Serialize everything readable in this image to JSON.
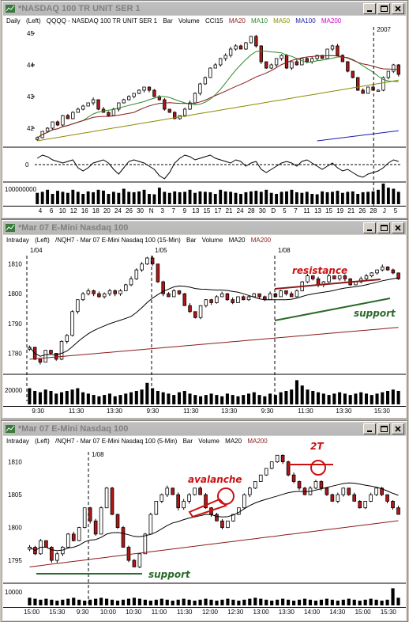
{
  "colors": {
    "up": "#ffffff",
    "down": "#b01818",
    "ma20": "#8b1a1a",
    "ma10": "#2a8a2a",
    "ma50": "#8b8b00",
    "ma100": "#1a1ab0",
    "ma200": "#8b1a1a",
    "resistance": "#8b1a1a",
    "support": "#2a6a2a",
    "annotation": "#cc1010"
  },
  "windows": [
    {
      "title": "*NASDAQ 100 TR UNIT SER 1",
      "icon": "chart-icon",
      "infobar": [
        "Daily",
        "(Left)",
        "QQQQ - NASDAQ 100 TR UNIT SER 1",
        "Bar",
        "Volume",
        "CCI15",
        "MA20",
        "MA10",
        "MA50",
        "MA100",
        "MA200"
      ],
      "year_label": "2007",
      "yticks": [
        "45",
        "44",
        "43",
        "42"
      ],
      "cci_tick": "0",
      "volume_tick": "100000000",
      "xlabels": [
        "4",
        "6",
        "10",
        "12",
        "16",
        "18",
        "20",
        "24",
        "26",
        "30",
        "N",
        "3",
        "7",
        "9",
        "13",
        "15",
        "17",
        "21",
        "24",
        "28",
        "30",
        "D",
        "5",
        "7",
        "11",
        "13",
        "15",
        "19",
        "21",
        "26",
        "28",
        "J",
        "5"
      ]
    },
    {
      "title": "*Mar 07  E-Mini Nasdaq 100",
      "icon": "chart-icon",
      "infobar": [
        "Intraday",
        "(Left)",
        "/NQH7 - Mar 07  E-Mini Nasdaq 100 (15-Min)",
        "Bar",
        "Volume",
        "MA20",
        "MA200"
      ],
      "day_labels": [
        "1/04",
        "1/05",
        "1/08"
      ],
      "yticks": [
        "1810",
        "1800",
        "1790",
        "1780"
      ],
      "volume_tick": "20000",
      "xlabels": [
        "9:30",
        "11:30",
        "13:30",
        "9:30",
        "11:30",
        "13:30",
        "9:30",
        "11:30",
        "13:30",
        "15:30"
      ],
      "annotations": {
        "resistance": "resistance",
        "support": "support"
      }
    },
    {
      "title": "*Mar 07  E-Mini Nasdaq 100",
      "icon": "chart-icon",
      "infobar": [
        "Intraday",
        "(Left)",
        "/NQH7 - Mar 07  E-Mini Nasdaq 100 (5-Min)",
        "Bar",
        "Volume",
        "MA20",
        "MA200"
      ],
      "day_labels": [
        "1/08"
      ],
      "yticks": [
        "1810",
        "1805",
        "1800",
        "1795"
      ],
      "volume_tick": "10000",
      "xlabels": [
        "15:00",
        "15:30",
        "9:30",
        "10:00",
        "10:30",
        "11:00",
        "11:30",
        "12:00",
        "12:30",
        "13:00",
        "13:30",
        "14:00",
        "14:30",
        "15:00",
        "15:30"
      ],
      "annotations": {
        "avalanche": "avalanche",
        "support": "support",
        "two_t": "2T"
      }
    }
  ],
  "chart_data": [
    {
      "type": "candlestick",
      "title": "QQQQ - NASDAQ 100 TR UNIT SER 1 (Daily)",
      "ylim": [
        41.5,
        45.2
      ],
      "close": [
        41.7,
        41.9,
        42.0,
        42.2,
        42.1,
        42.4,
        42.3,
        42.5,
        42.6,
        42.7,
        42.8,
        42.9,
        42.6,
        42.5,
        42.4,
        42.6,
        42.8,
        42.9,
        43.0,
        43.1,
        43.2,
        43.3,
        43.2,
        43.0,
        42.9,
        42.6,
        42.5,
        42.3,
        42.4,
        42.6,
        42.8,
        43.1,
        43.4,
        43.6,
        43.9,
        44.0,
        44.2,
        44.3,
        44.5,
        44.6,
        44.5,
        44.7,
        44.9,
        44.6,
        44.1,
        43.9,
        44.0,
        44.2,
        44.3,
        43.9,
        44.1,
        44.0,
        44.2,
        44.1,
        44.2,
        44.3,
        44.2,
        44.5,
        44.6,
        44.3,
        44.1,
        43.8,
        43.6,
        43.2,
        43.1,
        43.3,
        43.2,
        43.2,
        43.6,
        43.8,
        44.0,
        43.7
      ],
      "cci_ylim": [
        -200,
        200
      ],
      "cci": [
        80,
        120,
        100,
        60,
        40,
        20,
        40,
        60,
        -40,
        -80,
        -40,
        20,
        40,
        60,
        20,
        -60,
        -120,
        -40,
        40,
        60,
        40,
        20,
        -20,
        -60,
        -140,
        -180,
        -100,
        20,
        80,
        120,
        100,
        60,
        80,
        100,
        120,
        80,
        60,
        40,
        20,
        60,
        40,
        -20,
        20,
        40,
        -60,
        -100,
        -60,
        -20,
        20,
        40,
        20,
        -20,
        40,
        60,
        20,
        -20,
        -60,
        -20,
        20,
        -40,
        -80,
        -60,
        -100,
        -140,
        -160,
        -120,
        -100,
        -80,
        -40,
        20,
        60,
        40
      ],
      "volume": [
        0.55,
        0.6,
        0.7,
        0.5,
        0.65,
        0.6,
        0.55,
        0.7,
        0.6,
        0.5,
        0.62,
        0.58,
        0.7,
        0.66,
        0.5,
        0.6,
        0.55,
        0.75,
        0.6,
        0.58,
        0.62,
        0.7,
        0.5,
        0.48,
        0.8,
        0.6,
        0.55,
        0.62,
        0.58,
        0.6,
        0.7,
        0.55,
        0.62,
        0.6,
        0.58,
        0.5,
        0.7,
        0.62,
        0.6,
        0.55,
        0.5,
        0.58,
        0.62,
        0.65,
        0.6,
        0.7,
        0.55,
        0.5,
        0.6,
        0.62,
        0.7,
        0.58,
        0.55,
        0.6,
        0.5,
        0.48,
        0.62,
        0.58,
        0.6,
        0.65,
        0.55,
        0.6,
        0.62,
        0.5,
        0.58,
        0.6,
        0.62,
        0.7,
        1.0,
        0.8,
        0.75,
        0.6
      ]
    },
    {
      "type": "candlestick",
      "title": "/NQH7 - Mar 07 E-Mini Nasdaq 100 (15-Min)",
      "ylim": [
        1774,
        1816
      ],
      "close": [
        1782,
        1778,
        1777,
        1781,
        1780,
        1778,
        1784,
        1786,
        1794,
        1798,
        1800,
        1801,
        1800,
        1799,
        1800,
        1801,
        1800,
        1801,
        1803,
        1805,
        1808,
        1810,
        1812,
        1810,
        1804,
        1800,
        1799,
        1801,
        1800,
        1796,
        1794,
        1792,
        1796,
        1798,
        1797,
        1799,
        1800,
        1798,
        1797,
        1799,
        1798,
        1799,
        1800,
        1799,
        1798,
        1800,
        1799,
        1801,
        1800,
        1799,
        1801,
        1804,
        1806,
        1805,
        1803,
        1804,
        1806,
        1805,
        1806,
        1805,
        1803,
        1804,
        1805,
        1806,
        1807,
        1808,
        1809,
        1808,
        1807,
        1805
      ],
      "volume": [
        0.6,
        0.5,
        0.45,
        0.55,
        0.5,
        0.4,
        0.45,
        0.5,
        0.55,
        0.6,
        0.45,
        0.4,
        0.35,
        0.3,
        0.35,
        0.4,
        0.3,
        0.35,
        0.4,
        0.45,
        0.5,
        0.55,
        0.8,
        0.6,
        0.5,
        0.45,
        0.4,
        0.35,
        0.45,
        0.5,
        0.4,
        0.35,
        0.3,
        0.35,
        0.4,
        0.35,
        0.3,
        0.4,
        0.35,
        0.3,
        0.35,
        0.4,
        0.45,
        0.35,
        0.3,
        0.4,
        0.35,
        0.45,
        0.5,
        0.55,
        0.9,
        0.7,
        0.55,
        0.5,
        0.45,
        0.4,
        0.35,
        0.4,
        0.45,
        0.4,
        0.35,
        0.4,
        0.45,
        0.4,
        0.35,
        0.4,
        0.45,
        0.5,
        0.55,
        0.5
      ]
    },
    {
      "type": "candlestick",
      "title": "/NQH7 - Mar 07 E-Mini Nasdaq 100 (5-Min)",
      "ylim": [
        1792,
        1812
      ],
      "close": [
        1797,
        1796,
        1798,
        1797,
        1795,
        1796,
        1797,
        1799,
        1798,
        1800,
        1803,
        1801,
        1799,
        1803,
        1806,
        1802,
        1800,
        1797,
        1795,
        1794,
        1796,
        1799,
        1802,
        1804,
        1805,
        1806,
        1805,
        1803,
        1804,
        1805,
        1806,
        1805,
        1803,
        1802,
        1801,
        1800,
        1801,
        1802,
        1803,
        1805,
        1806,
        1807,
        1808,
        1809,
        1810,
        1811,
        1810,
        1808,
        1807,
        1806,
        1805,
        1806,
        1807,
        1806,
        1805,
        1804,
        1805,
        1806,
        1805,
        1804,
        1803,
        1804,
        1805,
        1806,
        1805,
        1804,
        1803,
        1802
      ],
      "volume": [
        0.4,
        0.35,
        0.3,
        0.35,
        0.3,
        0.25,
        0.3,
        0.35,
        0.4,
        0.3,
        0.25,
        0.3,
        0.35,
        0.4,
        0.35,
        0.3,
        0.25,
        0.3,
        0.35,
        0.4,
        0.35,
        0.3,
        0.25,
        0.3,
        0.35,
        0.3,
        0.25,
        0.3,
        0.35,
        0.3,
        0.25,
        0.3,
        0.35,
        0.3,
        0.25,
        0.3,
        0.35,
        0.3,
        0.25,
        0.3,
        0.35,
        0.4,
        0.35,
        0.3,
        0.25,
        0.3,
        0.35,
        0.3,
        0.25,
        0.3,
        0.35,
        0.3,
        0.25,
        0.3,
        0.35,
        0.3,
        0.25,
        0.3,
        0.35,
        0.3,
        0.25,
        0.3,
        0.35,
        0.3,
        0.25,
        0.3,
        0.9,
        0.4
      ]
    }
  ]
}
